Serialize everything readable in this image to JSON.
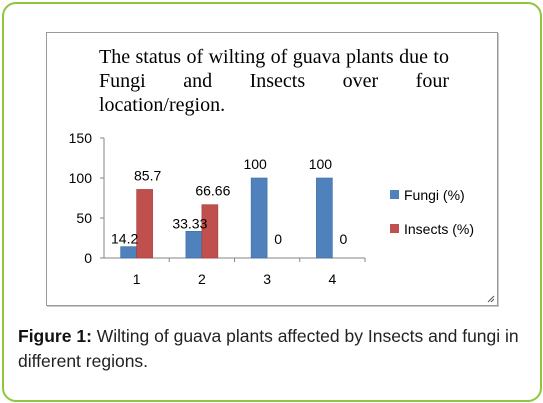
{
  "chart_data": {
    "type": "bar",
    "title": "The status of wilting of guava plants due to Fungi and Insects over four location/region.",
    "xlabel": "",
    "ylabel": "",
    "categories": [
      "1",
      "2",
      "3",
      "4"
    ],
    "series": [
      {
        "name": "Fungi (%)",
        "color": "#4f81bd",
        "values": [
          14.2,
          33.33,
          100,
          100
        ],
        "labels": [
          "14.2",
          "33.33",
          "100",
          "100"
        ]
      },
      {
        "name": "Insects (%)",
        "color": "#c0504d",
        "values": [
          85.7,
          66.66,
          0,
          0
        ],
        "labels": [
          "85.7",
          "66.66",
          "0",
          "0"
        ]
      }
    ],
    "ylim": [
      0,
      150
    ],
    "yticks": [
      "0",
      "50",
      "100",
      "150"
    ],
    "grid": false,
    "legend": "right"
  },
  "caption": {
    "label": "Figure 1:",
    "text": " Wilting of guava plants affected by Insects and fungi in different regions."
  }
}
